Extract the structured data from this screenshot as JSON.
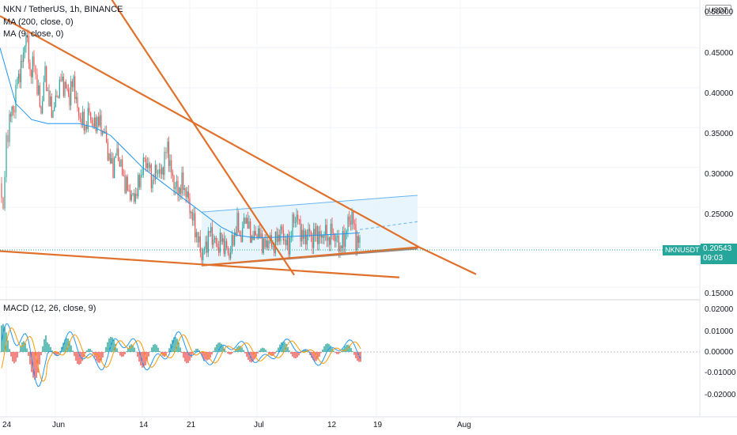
{
  "chart_data": [
    {
      "type": "candlestick",
      "title": "NKN / TetherUS, 1h, BINANCE",
      "indicators": [
        {
          "name": "MA (200, close, 0)",
          "color": "#2196f3"
        },
        {
          "name": "MA (9, close, 0)",
          "color": "#ff9800"
        }
      ],
      "currency": "USDT",
      "symbol": "NKNUSDT",
      "last_price": "0.20543",
      "countdown": "09:03",
      "y_ticks": [
        "0.50000",
        "0.45000",
        "0.40000",
        "0.35000",
        "0.30000",
        "0.25000",
        "0.15000"
      ],
      "x_ticks": [
        "24",
        "Jun",
        "14",
        "21",
        "Jul",
        "12",
        "19",
        "Aug"
      ],
      "ylim": [
        0.135,
        0.51
      ],
      "price_path": [
        [
          0,
          0.28
        ],
        [
          4,
          0.25
        ],
        [
          8,
          0.33
        ],
        [
          12,
          0.36
        ],
        [
          18,
          0.38
        ],
        [
          22,
          0.41
        ],
        [
          28,
          0.43
        ],
        [
          33,
          0.47
        ],
        [
          38,
          0.42
        ],
        [
          43,
          0.43
        ],
        [
          47,
          0.4
        ],
        [
          52,
          0.37
        ],
        [
          57,
          0.42
        ],
        [
          62,
          0.38
        ],
        [
          67,
          0.37
        ],
        [
          72,
          0.39
        ],
        [
          77,
          0.41
        ],
        [
          82,
          0.4
        ],
        [
          88,
          0.39
        ],
        [
          93,
          0.41
        ],
        [
          98,
          0.37
        ],
        [
          103,
          0.36
        ],
        [
          108,
          0.35
        ],
        [
          113,
          0.37
        ],
        [
          118,
          0.35
        ],
        [
          123,
          0.36
        ],
        [
          128,
          0.35
        ],
        [
          133,
          0.34
        ],
        [
          138,
          0.31
        ],
        [
          143,
          0.3
        ],
        [
          148,
          0.32
        ],
        [
          153,
          0.3
        ],
        [
          158,
          0.28
        ],
        [
          163,
          0.27
        ],
        [
          168,
          0.26
        ],
        [
          173,
          0.27
        ],
        [
          178,
          0.29
        ],
        [
          183,
          0.31
        ],
        [
          188,
          0.3
        ],
        [
          193,
          0.28
        ],
        [
          198,
          0.3
        ],
        [
          203,
          0.29
        ],
        [
          208,
          0.31
        ],
        [
          212,
          0.33
        ],
        [
          215,
          0.3
        ],
        [
          220,
          0.28
        ],
        [
          225,
          0.27
        ],
        [
          230,
          0.28
        ],
        [
          235,
          0.27
        ],
        [
          240,
          0.25
        ],
        [
          245,
          0.23
        ],
        [
          250,
          0.21
        ],
        [
          255,
          0.19
        ],
        [
          260,
          0.2
        ],
        [
          265,
          0.22
        ],
        [
          270,
          0.21
        ],
        [
          275,
          0.2
        ],
        [
          280,
          0.21
        ],
        [
          285,
          0.2
        ],
        [
          290,
          0.19
        ],
        [
          295,
          0.21
        ],
        [
          300,
          0.23
        ],
        [
          305,
          0.21
        ],
        [
          310,
          0.24
        ],
        [
          315,
          0.22
        ],
        [
          320,
          0.21
        ],
        [
          325,
          0.22
        ],
        [
          330,
          0.21
        ],
        [
          335,
          0.2
        ],
        [
          340,
          0.21
        ],
        [
          345,
          0.2
        ],
        [
          350,
          0.21
        ],
        [
          355,
          0.22
        ],
        [
          360,
          0.21
        ],
        [
          365,
          0.2
        ],
        [
          370,
          0.23
        ],
        [
          375,
          0.24
        ],
        [
          380,
          0.22
        ],
        [
          385,
          0.21
        ],
        [
          390,
          0.22
        ],
        [
          395,
          0.21
        ],
        [
          400,
          0.22
        ],
        [
          405,
          0.21
        ],
        [
          410,
          0.22
        ],
        [
          415,
          0.21
        ],
        [
          420,
          0.22
        ],
        [
          425,
          0.21
        ],
        [
          430,
          0.2
        ],
        [
          435,
          0.21
        ],
        [
          440,
          0.23
        ],
        [
          445,
          0.24
        ],
        [
          450,
          0.21
        ],
        [
          455,
          0.205
        ]
      ],
      "ma200_path": [
        [
          0,
          0.45
        ],
        [
          20,
          0.38
        ],
        [
          40,
          0.36
        ],
        [
          60,
          0.355
        ],
        [
          80,
          0.355
        ],
        [
          100,
          0.355
        ],
        [
          120,
          0.35
        ],
        [
          140,
          0.34
        ],
        [
          160,
          0.32
        ],
        [
          180,
          0.3
        ],
        [
          200,
          0.285
        ],
        [
          220,
          0.27
        ],
        [
          240,
          0.255
        ],
        [
          260,
          0.24
        ],
        [
          280,
          0.225
        ],
        [
          300,
          0.215
        ],
        [
          320,
          0.212
        ],
        [
          340,
          0.212
        ],
        [
          360,
          0.213
        ],
        [
          380,
          0.214
        ],
        [
          400,
          0.215
        ],
        [
          420,
          0.216
        ],
        [
          440,
          0.217
        ],
        [
          455,
          0.218
        ]
      ],
      "trendlines": [
        {
          "name": "upper-resistance-line",
          "from": [
            0,
            0.49
          ],
          "to": [
            530,
            0.2
          ]
        },
        {
          "name": "steep-resistance-line",
          "from": [
            115,
            0.55
          ],
          "to": [
            372,
            0.165
          ]
        },
        {
          "name": "channel-support-line",
          "from": [
            255,
            0.177
          ],
          "to": [
            530,
            0.2
          ]
        },
        {
          "name": "descending-support-line",
          "from": [
            0,
            0.195
          ],
          "to": [
            505,
            0.162
          ]
        },
        {
          "name": "outer-support-line",
          "from": [
            530,
            0.2
          ],
          "to": [
            602,
            0.166
          ]
        }
      ],
      "channel": {
        "top_from": [
          255,
          0.244
        ],
        "top_to": [
          528,
          0.265
        ],
        "bottom_from": [
          255,
          0.177
        ],
        "bottom_to": [
          528,
          0.198
        ]
      }
    },
    {
      "type": "bar",
      "title": "MACD (12, 26, close, 9)",
      "y_ticks": [
        "0.02000",
        "0.01000",
        "0.00000",
        "-0.01000",
        "-0.02000"
      ],
      "ylim": [
        -0.028,
        0.021
      ],
      "histogram_colors": {
        "up": "#26a69a",
        "down": "#ef5350"
      },
      "macd_color": "#2196f3",
      "signal_color": "#ff9800"
    }
  ]
}
